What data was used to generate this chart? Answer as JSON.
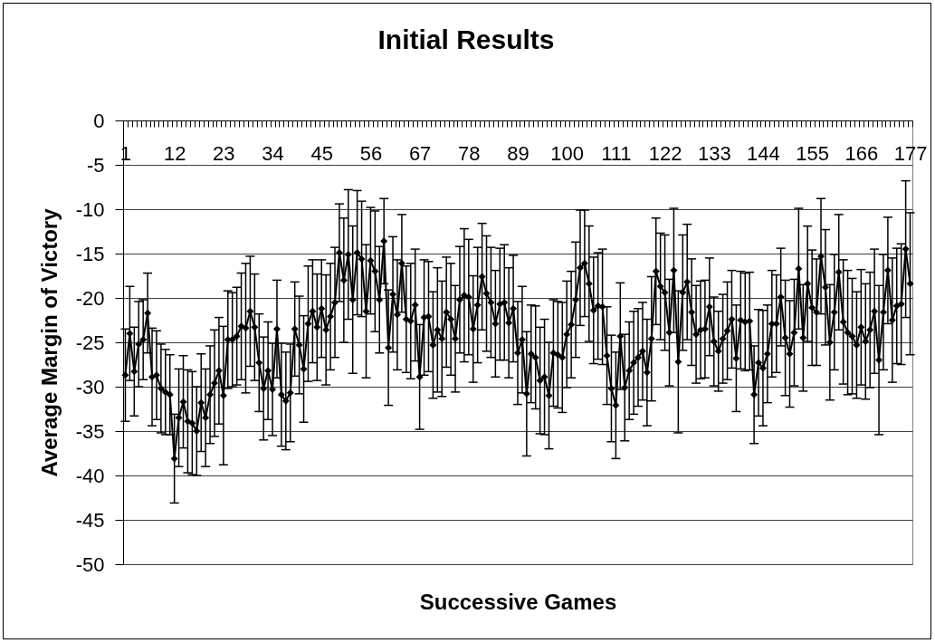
{
  "chart_data": {
    "type": "line",
    "title": "Initial Results",
    "xlabel": "Successive Games",
    "ylabel": "Average Margin of Victory",
    "categories": [
      "1",
      null,
      null,
      null,
      null,
      null,
      null,
      null,
      null,
      null,
      null,
      "12",
      null,
      null,
      null,
      null,
      null,
      null,
      null,
      null,
      null,
      null,
      "23",
      null,
      null,
      null,
      null,
      null,
      null,
      null,
      null,
      null,
      null,
      "34",
      null,
      null,
      null,
      null,
      null,
      null,
      null,
      null,
      null,
      null,
      "45",
      null,
      null,
      null,
      null,
      null,
      null,
      null,
      null,
      null,
      null,
      "56",
      null,
      null,
      null,
      null,
      null,
      null,
      null,
      null,
      null,
      null,
      "67",
      null,
      null,
      null,
      null,
      null,
      null,
      null,
      null,
      null,
      null,
      "78",
      null,
      null,
      null,
      null,
      null,
      null,
      null,
      null,
      null,
      null,
      "89",
      null,
      null,
      null,
      null,
      null,
      null,
      null,
      null,
      null,
      null,
      "100",
      null,
      null,
      null,
      null,
      null,
      null,
      null,
      null,
      null,
      null,
      "111",
      null,
      null,
      null,
      null,
      null,
      null,
      null,
      null,
      null,
      null,
      "122",
      null,
      null,
      null,
      null,
      null,
      null,
      null,
      null,
      null,
      null,
      "133",
      null,
      null,
      null,
      null,
      null,
      null,
      null,
      null,
      null,
      null,
      "144",
      null,
      null,
      null,
      null,
      null,
      null,
      null,
      null,
      null,
      null,
      "155",
      null,
      null,
      null,
      null,
      null,
      null,
      null,
      null,
      null,
      null,
      "166",
      null,
      null,
      null,
      null,
      null,
      null,
      null,
      null,
      null,
      null,
      "177"
    ],
    "values": [
      -28.7,
      -24.0,
      -28.3,
      -25.2,
      -24.7,
      -21.7,
      -28.9,
      -28.7,
      -30.2,
      -30.6,
      -30.9,
      -38.1,
      -33.5,
      -31.7,
      -33.9,
      -34.1,
      -35.0,
      -31.8,
      -33.5,
      -30.9,
      -29.6,
      -28.2,
      -31.0,
      -24.7,
      -24.7,
      -24.3,
      -23.2,
      -23.4,
      -21.5,
      -23.3,
      -27.3,
      -30.2,
      -28.2,
      -30.3,
      -23.5,
      -30.9,
      -31.6,
      -30.7,
      -23.5,
      -25.3,
      -28.0,
      -22.9,
      -21.5,
      -23.3,
      -21.2,
      -23.6,
      -22.1,
      -20.5,
      -14.9,
      -18.0,
      -15.1,
      -20.2,
      -14.9,
      -15.6,
      -21.5,
      -15.8,
      -17.0,
      -20.2,
      -13.6,
      -25.6,
      -19.6,
      -21.9,
      -16.1,
      -22.4,
      -22.6,
      -20.8,
      -28.9,
      -22.2,
      -22.1,
      -25.3,
      -23.6,
      -24.6,
      -21.6,
      -22.4,
      -24.6,
      -20.2,
      -19.7,
      -19.9,
      -23.5,
      -20.8,
      -17.6,
      -19.5,
      -20.5,
      -22.9,
      -20.7,
      -20.5,
      -22.8,
      -21.2,
      -26.2,
      -24.7,
      -30.8,
      -26.3,
      -26.7,
      -29.3,
      -28.9,
      -31.0,
      -26.2,
      -26.4,
      -26.7,
      -24.1,
      -23.0,
      -20.2,
      -16.6,
      -16.1,
      -18.4,
      -21.4,
      -20.9,
      -21.0,
      -26.5,
      -30.2,
      -32.1,
      -24.3,
      -30.1,
      -28.2,
      -27.3,
      -26.7,
      -26.0,
      -28.4,
      -24.6,
      -17.0,
      -18.7,
      -19.4,
      -23.9,
      -16.9,
      -27.2,
      -19.4,
      -18.2,
      -21.6,
      -24.1,
      -23.6,
      -23.5,
      -21.0,
      -24.9,
      -26.0,
      -24.6,
      -23.7,
      -22.4,
      -26.8,
      -22.5,
      -22.7,
      -22.6,
      -30.9,
      -27.3,
      -27.9,
      -26.3,
      -22.9,
      -22.9,
      -19.9,
      -24.5,
      -26.3,
      -23.9,
      -16.7,
      -24.5,
      -18.4,
      -21.1,
      -21.6,
      -15.3,
      -18.8,
      -25.0,
      -21.6,
      -17.1,
      -22.7,
      -23.9,
      -24.3,
      -25.3,
      -23.3,
      -24.9,
      -23.6,
      -21.5,
      -27.0,
      -21.6,
      -16.9,
      -22.5,
      -20.9,
      -20.7,
      -14.5,
      -18.4
    ],
    "errors": [
      5.2,
      5.3,
      5.0,
      4.8,
      4.5,
      4.5,
      5.5,
      5.0,
      5.0,
      4.8,
      4.5,
      5.0,
      5.5,
      5.2,
      5.8,
      5.8,
      5.0,
      5.5,
      5.5,
      5.5,
      6.0,
      6.0,
      7.8,
      5.5,
      5.3,
      5.5,
      6.0,
      7.3,
      6.2,
      6.0,
      5.5,
      5.8,
      5.5,
      5.2,
      5.5,
      5.8,
      5.5,
      5.5,
      5.3,
      5.5,
      6.0,
      6.5,
      5.8,
      6.0,
      5.5,
      6.2,
      6.0,
      6.2,
      5.5,
      7.0,
      7.3,
      8.3,
      7.0,
      6.5,
      7.5,
      6.0,
      6.8,
      6.0,
      4.8,
      6.5,
      6.5,
      6.2,
      5.5,
      6.0,
      6.5,
      6.3,
      5.9,
      6.5,
      6.2,
      6.0,
      7.0,
      6.5,
      6.2,
      6.3,
      6.0,
      6.0,
      7.5,
      6.5,
      6.0,
      6.5,
      6.0,
      6.5,
      6.2,
      6.0,
      6.3,
      6.5,
      6.2,
      6.0,
      5.8,
      6.0,
      7.0,
      5.5,
      5.8,
      6.0,
      6.5,
      6.0,
      6.0,
      6.0,
      6.2,
      6.0,
      6.0,
      6.5,
      6.5,
      6.0,
      6.5,
      6.0,
      6.0,
      6.5,
      5.5,
      6.0,
      6.0,
      6.0,
      6.0,
      5.5,
      5.8,
      5.5,
      5.5,
      6.0,
      7.0,
      6.0,
      6.0,
      6.5,
      6.0,
      7.0,
      8.0,
      6.5,
      6.5,
      6.0,
      5.5,
      5.5,
      5.5,
      5.5,
      5.0,
      4.5,
      5.0,
      5.5,
      5.5,
      6.0,
      5.5,
      5.5,
      5.5,
      5.5,
      6.0,
      6.5,
      5.5,
      6.0,
      5.5,
      5.5,
      6.5,
      6.0,
      6.0,
      6.8,
      6.0,
      6.5,
      6.5,
      6.0,
      6.5,
      6.5,
      6.5,
      6.5,
      6.5,
      7.0,
      7.0,
      6.5,
      6.0,
      6.5,
      6.5,
      6.5,
      7.0,
      8.4,
      6.5,
      6.0,
      7.0,
      6.5,
      6.8,
      7.7,
      8.0
    ],
    "color": "#000000",
    "marker": "diamond",
    "grid": "y",
    "ylim": [
      -50,
      0
    ],
    "yticks": [
      -50,
      -45,
      -40,
      -35,
      -30,
      -25,
      -20,
      -15,
      -10,
      -5,
      0
    ]
  }
}
